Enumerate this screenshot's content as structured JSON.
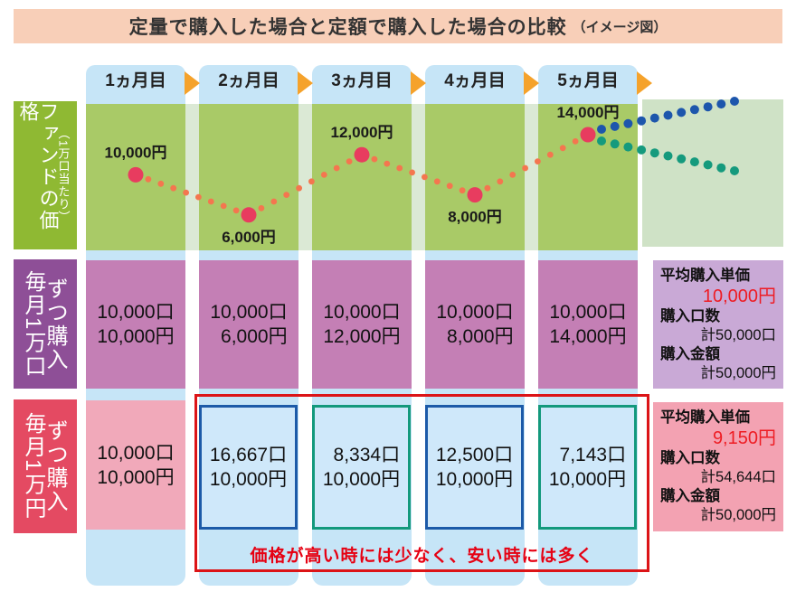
{
  "title": {
    "main": "定量で購入した場合と定額で購入した場合の比較",
    "note": "（イメージ図）"
  },
  "months": [
    "1ヵ月目",
    "2ヵ月目",
    "3ヵ月目",
    "4ヵ月目",
    "5ヵ月目"
  ],
  "icons": {
    "month_arrow": "triangle-right"
  },
  "chart_data": {
    "type": "line",
    "style": "dotted",
    "title": "ファンドの価格（1万口当たり）",
    "categories": [
      "1ヵ月目",
      "2ヵ月目",
      "3ヵ月目",
      "4ヵ月目",
      "5ヵ月目"
    ],
    "prices": [
      10000,
      6000,
      12000,
      8000,
      14000
    ],
    "point_labels": [
      "10,000円",
      "6,000円",
      "12,000円",
      "8,000円",
      "14,000円"
    ],
    "label_positions": [
      "above",
      "below",
      "above",
      "below",
      "above"
    ],
    "ylim": [
      6000,
      14000
    ],
    "grid": false,
    "legend": "none",
    "colors": {
      "point": "#e83c5f",
      "connector": "#f4764f",
      "branch_up": "#1d56ac",
      "branch_down": "#159a7d"
    },
    "branches": [
      {
        "direction": "up",
        "color": "#1d56ac"
      },
      {
        "direction": "down",
        "color": "#159a7d"
      }
    ]
  },
  "sections": {
    "fund_price": {
      "label_main": "ファンドの価格",
      "label_sub": "（1万口当たり）"
    },
    "fixed_units": {
      "label_main": "毎月1万口",
      "label_sub": "ずつ購入",
      "cells": [
        [
          "10,000口",
          "10,000円"
        ],
        [
          "10,000口",
          "6,000円"
        ],
        [
          "10,000口",
          "12,000円"
        ],
        [
          "10,000口",
          "8,000円"
        ],
        [
          "10,000口",
          "14,000円"
        ]
      ],
      "summary": {
        "avg_label": "平均購入単価",
        "avg_value": "10,000円",
        "units_label": "購入口数",
        "units_value": "計50,000口",
        "amount_label": "購入金額",
        "amount_value": "計50,000円"
      }
    },
    "fixed_amount": {
      "label_main": "毎月1万円",
      "label_sub": "ずつ購入",
      "cells": [
        [
          "10,000口",
          "10,000円"
        ],
        [
          "16,667口",
          "10,000円"
        ],
        [
          "8,334口",
          "10,000円"
        ],
        [
          "12,500口",
          "10,000円"
        ],
        [
          "7,143口",
          "10,000円"
        ]
      ],
      "summary": {
        "avg_label": "平均購入単価",
        "avg_value": "9,150円",
        "units_label": "購入口数",
        "units_value": "計54,644口",
        "amount_label": "購入金額",
        "amount_value": "計50,000円"
      },
      "callout": "価格が高い時には少なく、安い時には多く"
    }
  },
  "colors": {
    "banner_bg": "#f8cfb8",
    "strip_blue": "#c6e5f7",
    "arrow_orange": "#f5a22b",
    "price_label_bg": "#8fb933",
    "price_col_green": "#a9ca67",
    "future_area_green": "#cfe2c6",
    "units_label_bg": "#8e4f97",
    "units_cell_bg": "#c47fb5",
    "units_summary_bg": "#c9a9d6",
    "amount_label_bg": "#e44a62",
    "amount_cell_bg": "#f1a9ba",
    "amount_summary_bg": "#f3a2b2",
    "highlight_cell_bg": "#cfe8fa",
    "highlight_border_blue": "#1c5aa8",
    "highlight_border_teal": "#13997c",
    "red_box_border": "#dc1417",
    "accent_red": "#ee1c23"
  }
}
